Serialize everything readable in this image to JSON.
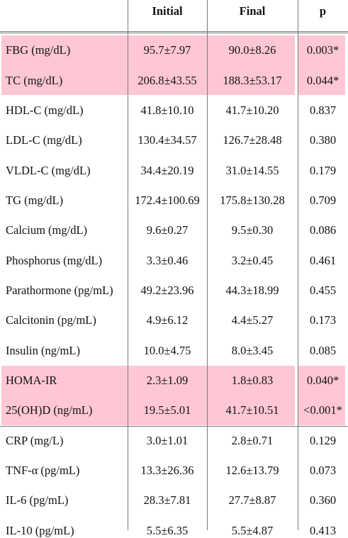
{
  "table": {
    "headers": [
      "",
      "Initial",
      "Final",
      "p"
    ],
    "rows": [
      {
        "label": "FBG (mg/dL)",
        "initial": "95.7±7.97",
        "final": "90.0±8.26",
        "p": "0.003*",
        "highlight": true
      },
      {
        "label": "TC (mg/dL)",
        "initial": "206.8±43.55",
        "final": "188.3±53.17",
        "p": "0.044*",
        "highlight": true
      },
      {
        "label": "HDL-C (mg/dL)",
        "initial": "41.8±10.10",
        "final": "41.7±10.20",
        "p": "0.837",
        "highlight": false
      },
      {
        "label": "LDL-C (mg/dL)",
        "initial": "130.4±34.57",
        "final": "126.7±28.48",
        "p": "0.380",
        "highlight": false
      },
      {
        "label": "VLDL-C (mg/dL)",
        "initial": "34.4±20.19",
        "final": "31.0±14.55",
        "p": "0.179",
        "highlight": false
      },
      {
        "label": "TG (mg/dL)",
        "initial": "172.4±100.69",
        "final": "175.8±130.28",
        "p": "0.709",
        "highlight": false
      },
      {
        "label": "Calcium (mg/dL)",
        "initial": "9.6±0.27",
        "final": "9.5±0.30",
        "p": "0.086",
        "highlight": false
      },
      {
        "label": "Phosphorus (mg/dL)",
        "initial": "3.3±0.46",
        "final": "3.2±0.45",
        "p": "0.461",
        "highlight": false
      },
      {
        "label": "Parathormone (pg/mL)",
        "initial": "49.2±23.96",
        "final": "44.3±18.99",
        "p": "0.455",
        "highlight": false
      },
      {
        "label": "Calcitonin (pg/mL)",
        "initial": "4.9±6.12",
        "final": "4.4±5.27",
        "p": "0.173",
        "highlight": false
      },
      {
        "label": "Insulin (ng/mL)",
        "initial": "10.0±4.75",
        "final": "8.0±3.45",
        "p": "0.085",
        "highlight": false
      },
      {
        "label": "HOMA-IR",
        "initial": "2.3±1.09",
        "final": "1.8±0.83",
        "p": "0.040*",
        "highlight": true
      },
      {
        "label": "25(OH)D (ng/mL)",
        "initial": "19.5±5.01",
        "final": "41.7±10.51",
        "p": "<0.001*",
        "highlight": true
      },
      {
        "label": "CRP (mg/L)",
        "initial": "3.0±1.01",
        "final": "2.8±0.71",
        "p": "0.129",
        "highlight": false
      },
      {
        "label": "TNF-α (pg/mL)",
        "initial": "13.3±26.36",
        "final": "12.6±13.79",
        "p": "0.073",
        "highlight": false
      },
      {
        "label": "IL-6 (pg/mL)",
        "initial": "28.3±7.81",
        "final": "27.7±8.87",
        "p": "0.360",
        "highlight": false
      },
      {
        "label": "IL-10 (pg/mL)",
        "initial": "5.5±6.35",
        "final": "5.5±4.87",
        "p": "0.413",
        "highlight": false
      }
    ],
    "highlight_color": "#ffc7d6"
  }
}
